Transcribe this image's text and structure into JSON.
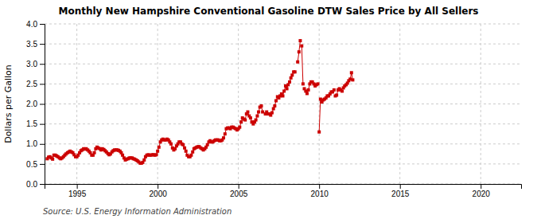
{
  "chart_data": {
    "type": "line",
    "title": "Monthly New Hampshire Conventional Gasoline DTW Sales Price by All Sellers",
    "ylabel": "Dollars per Gallon",
    "annotations": [
      "Source: U.S. Energy Information Administration"
    ],
    "xlim": [
      1993.0,
      2022.5
    ],
    "ylim": [
      0.0,
      4.0
    ],
    "xticks": [
      1995,
      2000,
      2005,
      2010,
      2015,
      2020
    ],
    "yticks": [
      {
        "value": 0.0,
        "label": "0.0"
      },
      0.5,
      {
        "value": 1.0,
        "label": "1.0"
      },
      1.5,
      {
        "value": 2.0,
        "label": "2.0"
      },
      2.5,
      {
        "value": 3.0,
        "label": "3.0"
      },
      3.5,
      {
        "value": 4.0,
        "label": "4.0"
      }
    ],
    "grid": true,
    "x": [
      1993.17,
      1993.25,
      1993.33,
      1993.42,
      1993.5,
      1993.58,
      1993.67,
      1993.75,
      1993.83,
      1993.92,
      1994.0,
      1994.08,
      1994.17,
      1994.25,
      1994.33,
      1994.42,
      1994.5,
      1994.58,
      1994.67,
      1994.75,
      1994.83,
      1994.92,
      1995.0,
      1995.08,
      1995.17,
      1995.25,
      1995.33,
      1995.42,
      1995.5,
      1995.58,
      1995.67,
      1995.75,
      1995.83,
      1995.92,
      1996.0,
      1996.08,
      1996.17,
      1996.25,
      1996.33,
      1996.42,
      1996.5,
      1996.58,
      1996.67,
      1996.75,
      1996.83,
      1996.92,
      1997.0,
      1997.08,
      1997.17,
      1997.25,
      1997.33,
      1997.42,
      1997.5,
      1997.58,
      1997.67,
      1997.75,
      1997.83,
      1997.92,
      1998.0,
      1998.08,
      1998.17,
      1998.25,
      1998.33,
      1998.42,
      1998.5,
      1998.58,
      1998.67,
      1998.75,
      1998.83,
      1998.92,
      1999.0,
      1999.08,
      1999.17,
      1999.25,
      1999.33,
      1999.42,
      1999.5,
      1999.58,
      1999.67,
      1999.75,
      1999.83,
      1999.92,
      2000.0,
      2000.08,
      2000.17,
      2000.25,
      2000.33,
      2000.42,
      2000.5,
      2000.58,
      2000.67,
      2000.75,
      2000.83,
      2000.92,
      2001.0,
      2001.08,
      2001.17,
      2001.25,
      2001.33,
      2001.42,
      2001.5,
      2001.58,
      2001.67,
      2001.75,
      2001.83,
      2001.92,
      2002.0,
      2002.08,
      2002.17,
      2002.25,
      2002.33,
      2002.42,
      2002.5,
      2002.58,
      2002.67,
      2002.75,
      2002.83,
      2002.92,
      2003.0,
      2003.08,
      2003.17,
      2003.25,
      2003.33,
      2003.42,
      2003.5,
      2003.58,
      2003.67,
      2003.75,
      2003.83,
      2003.92,
      2004.0,
      2004.08,
      2004.17,
      2004.25,
      2004.33,
      2004.42,
      2004.5,
      2004.58,
      2004.67,
      2004.75,
      2004.83,
      2004.92,
      2005.0,
      2005.08,
      2005.17,
      2005.25,
      2005.33,
      2005.42,
      2005.5,
      2005.58,
      2005.67,
      2005.75,
      2005.83,
      2005.92,
      null,
      2006.0,
      2006.08,
      2006.17,
      2006.25,
      2006.33,
      2006.42,
      2006.5,
      null,
      2006.67,
      2006.75,
      2006.83,
      2006.92,
      2007.0,
      2007.08,
      2007.17,
      2007.25,
      2007.33,
      2007.42,
      null,
      2007.5,
      2007.58,
      2007.67,
      2007.75,
      2007.83,
      2007.92,
      2008.0,
      2008.08,
      2008.17,
      2008.25,
      2008.33,
      2008.42,
      2008.5,
      null,
      2008.67,
      2008.75,
      2008.83,
      null,
      2008.92,
      2009.0,
      null,
      2009.08,
      2009.17,
      2009.25,
      2009.33,
      2009.42,
      2009.5,
      2009.58,
      2009.67,
      2009.75,
      2009.83,
      2009.92,
      null,
      2010.0,
      2010.08,
      2010.17,
      null,
      2010.25,
      2010.33,
      2010.42,
      2010.5,
      2010.58,
      2010.67,
      2010.75,
      2010.83,
      2010.92,
      null,
      2011.0,
      2011.08,
      2011.17,
      2011.25,
      2011.33,
      2011.42,
      null,
      2011.5,
      2011.58,
      2011.67,
      2011.75,
      2011.83,
      2011.92,
      2012.0,
      2012.08
    ],
    "series": [
      {
        "color": "#cc0000",
        "marker": "square",
        "line_style": "solid",
        "values": [
          0.63,
          0.67,
          0.68,
          0.65,
          0.62,
          0.72,
          0.72,
          0.7,
          0.68,
          0.65,
          0.63,
          0.65,
          0.68,
          0.72,
          0.75,
          0.78,
          0.8,
          0.82,
          0.8,
          0.78,
          0.73,
          0.68,
          0.68,
          0.72,
          0.78,
          0.83,
          0.85,
          0.88,
          0.87,
          0.88,
          0.85,
          0.82,
          0.78,
          0.72,
          0.72,
          0.78,
          0.88,
          0.92,
          0.9,
          0.88,
          0.85,
          0.88,
          0.86,
          0.83,
          0.8,
          0.76,
          0.73,
          0.75,
          0.8,
          0.83,
          0.85,
          0.85,
          0.85,
          0.84,
          0.82,
          0.78,
          0.72,
          0.65,
          0.6,
          0.62,
          0.63,
          0.65,
          0.65,
          0.65,
          0.63,
          0.62,
          0.6,
          0.58,
          0.55,
          0.52,
          0.52,
          0.54,
          0.6,
          0.68,
          0.72,
          0.73,
          0.72,
          0.72,
          0.73,
          0.73,
          0.72,
          0.73,
          0.82,
          0.92,
          1.05,
          1.1,
          1.12,
          1.1,
          1.1,
          1.12,
          1.1,
          1.05,
          1.0,
          0.9,
          0.85,
          0.88,
          0.95,
          1.0,
          1.05,
          1.05,
          1.0,
          0.98,
          0.9,
          0.82,
          0.72,
          0.68,
          0.68,
          0.72,
          0.8,
          0.88,
          0.9,
          0.92,
          0.93,
          0.93,
          0.9,
          0.88,
          0.85,
          0.88,
          0.92,
          0.98,
          1.05,
          1.08,
          1.05,
          1.05,
          1.08,
          1.1,
          1.1,
          1.1,
          1.08,
          1.08,
          1.1,
          1.15,
          1.25,
          1.38,
          1.4,
          1.4,
          1.38,
          1.42,
          1.42,
          1.4,
          1.38,
          1.35,
          1.38,
          1.42,
          1.55,
          1.65,
          1.62,
          1.6,
          1.75,
          1.8,
          1.7,
          1.65,
          1.55,
          1.5,
          null,
          1.55,
          1.6,
          1.7,
          1.8,
          1.92,
          1.95,
          1.8,
          null,
          1.75,
          1.8,
          1.75,
          1.75,
          1.72,
          1.78,
          1.88,
          1.95,
          2.08,
          2.18,
          null,
          2.15,
          2.2,
          2.25,
          2.2,
          2.32,
          2.45,
          2.38,
          2.48,
          2.55,
          2.65,
          2.72,
          2.8,
          2.8,
          null,
          3.05,
          3.3,
          3.58,
          null,
          3.45,
          2.5,
          null,
          2.38,
          2.32,
          2.26,
          2.35,
          2.5,
          2.55,
          2.55,
          2.5,
          2.45,
          2.48,
          2.5,
          null,
          1.3,
          2.12,
          2.05,
          null,
          2.1,
          2.12,
          2.15,
          2.2,
          2.2,
          2.25,
          2.3,
          2.3,
          2.35,
          null,
          2.2,
          2.22,
          2.35,
          2.38,
          2.35,
          2.32,
          null,
          2.4,
          2.45,
          2.48,
          2.52,
          2.58,
          2.62,
          2.78,
          2.6
        ]
      }
    ]
  }
}
